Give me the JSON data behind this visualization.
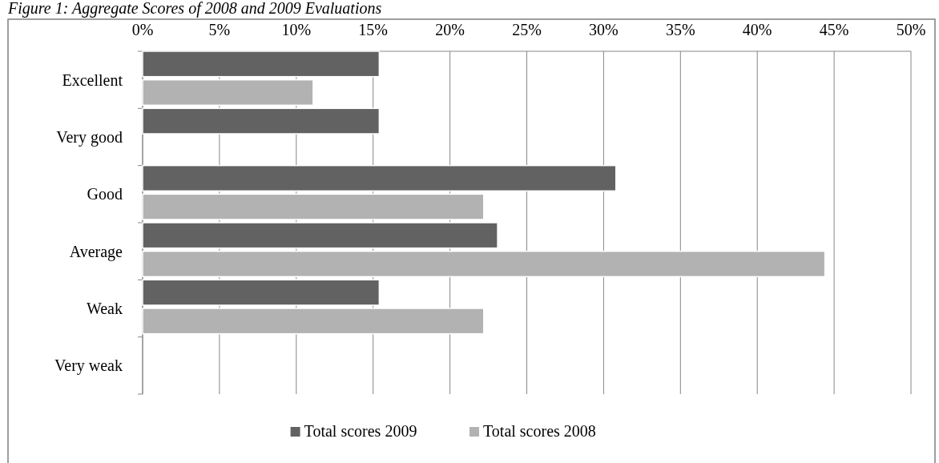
{
  "chart_data": {
    "type": "bar",
    "orientation": "horizontal",
    "title": "Figure 1: Aggregate Scores of 2008 and 2009 Evaluations",
    "categories": [
      "Excellent",
      "Very good",
      "Good",
      "Average",
      "Weak",
      "Very weak"
    ],
    "series": [
      {
        "name": "Total scores 2009",
        "color": "#626262",
        "values": [
          15.4,
          15.4,
          30.8,
          23.1,
          15.4,
          0
        ]
      },
      {
        "name": "Total scores 2008",
        "color": "#b2b2b2",
        "values": [
          11.1,
          0,
          22.2,
          44.4,
          22.2,
          0
        ]
      }
    ],
    "xlim": [
      0,
      50
    ],
    "xticks": [
      {
        "value": 0,
        "label": "0%"
      },
      {
        "value": 5,
        "label": "5%"
      },
      {
        "value": 10,
        "label": "10%"
      },
      {
        "value": 15,
        "label": "15%"
      },
      {
        "value": 20,
        "label": "20%"
      },
      {
        "value": 25,
        "label": "25%"
      },
      {
        "value": 30,
        "label": "30%"
      },
      {
        "value": 35,
        "label": "35%"
      },
      {
        "value": 40,
        "label": "40%"
      },
      {
        "value": 45,
        "label": "45%"
      },
      {
        "value": 50,
        "label": "50%"
      }
    ],
    "grid": "x",
    "legend": "bottom"
  }
}
